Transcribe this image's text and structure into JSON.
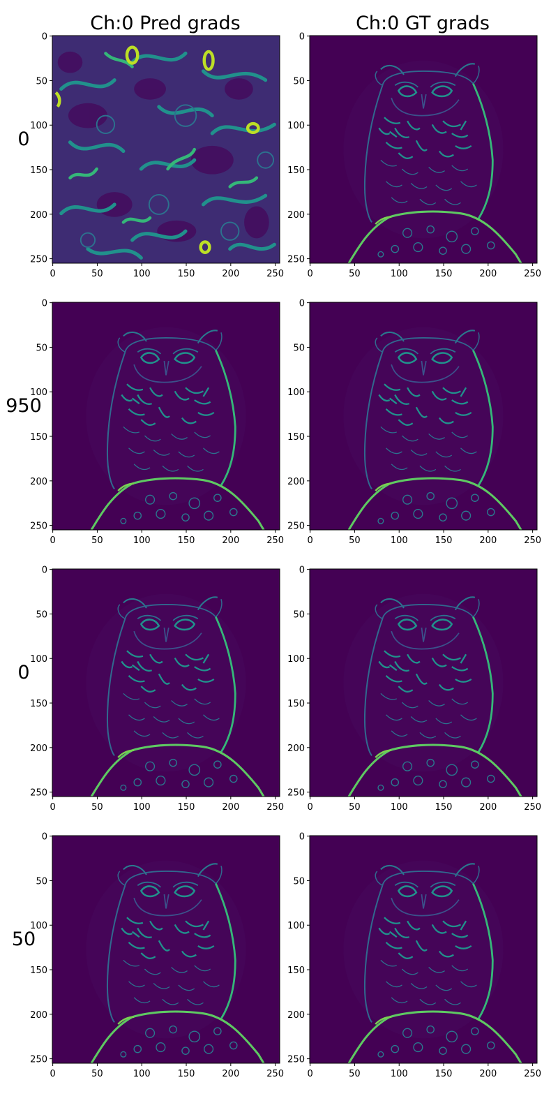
{
  "figure": {
    "column_titles": [
      "Ch:0 Pred grads",
      "Ch:0 GT grads"
    ],
    "row_labels": [
      "0",
      "950",
      "0",
      "50"
    ],
    "colormap": "viridis",
    "colors": {
      "background_low": "#440154",
      "mid": "#3b528b",
      "teal": "#21918c",
      "green": "#5ec962",
      "high": "#fde725",
      "axis": "#000000"
    },
    "panels": [
      {
        "row": 0,
        "col": 0,
        "content": "noise-gradient-field"
      },
      {
        "row": 0,
        "col": 1,
        "content": "owl-edge-gradients"
      },
      {
        "row": 1,
        "col": 0,
        "content": "owl-edge-gradients"
      },
      {
        "row": 1,
        "col": 1,
        "content": "owl-edge-gradients"
      },
      {
        "row": 2,
        "col": 0,
        "content": "owl-edge-gradients"
      },
      {
        "row": 2,
        "col": 1,
        "content": "owl-edge-gradients"
      },
      {
        "row": 3,
        "col": 0,
        "content": "owl-edge-gradients"
      },
      {
        "row": 3,
        "col": 1,
        "content": "owl-edge-gradients"
      }
    ],
    "axes": {
      "x_ticks": [
        0,
        50,
        100,
        150,
        200,
        250
      ],
      "y_ticks": [
        0,
        50,
        100,
        150,
        200,
        250
      ],
      "x_range": [
        0,
        255
      ],
      "y_range": [
        0,
        255
      ],
      "y_inverted": true
    }
  }
}
